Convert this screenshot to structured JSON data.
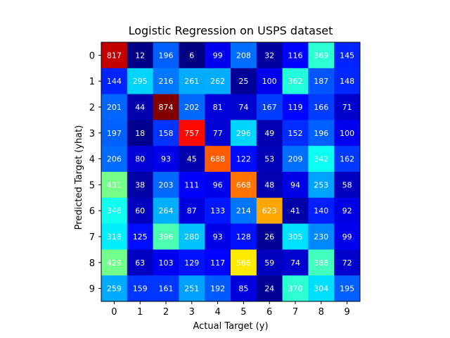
{
  "chart_data": {
    "type": "heatmap",
    "title": "Logistic Regression on USPS dataset",
    "xlabel": "Actual Target (y)",
    "ylabel": "Predicted Target (yhat)",
    "x_categories": [
      "0",
      "1",
      "2",
      "3",
      "4",
      "5",
      "6",
      "7",
      "8",
      "9"
    ],
    "y_categories": [
      "0",
      "1",
      "2",
      "3",
      "4",
      "5",
      "6",
      "7",
      "8",
      "9"
    ],
    "colormap": "jet",
    "color_range": [
      6,
      874
    ],
    "grid": false,
    "values": [
      [
        817,
        12,
        196,
        6,
        99,
        208,
        32,
        116,
        369,
        145
      ],
      [
        144,
        295,
        216,
        261,
        262,
        25,
        100,
        362,
        187,
        148
      ],
      [
        201,
        44,
        874,
        202,
        81,
        74,
        167,
        119,
        166,
        71
      ],
      [
        197,
        18,
        158,
        757,
        77,
        296,
        49,
        152,
        196,
        100
      ],
      [
        206,
        80,
        93,
        45,
        688,
        122,
        53,
        209,
        342,
        162
      ],
      [
        431,
        38,
        203,
        111,
        96,
        668,
        48,
        94,
        253,
        58
      ],
      [
        346,
        60,
        264,
        87,
        133,
        214,
        623,
        41,
        140,
        92
      ],
      [
        318,
        125,
        396,
        280,
        93,
        128,
        26,
        305,
        230,
        99
      ],
      [
        429,
        63,
        103,
        129,
        117,
        566,
        59,
        74,
        388,
        72
      ],
      [
        259,
        159,
        161,
        251,
        192,
        85,
        24,
        370,
        304,
        195
      ]
    ]
  }
}
